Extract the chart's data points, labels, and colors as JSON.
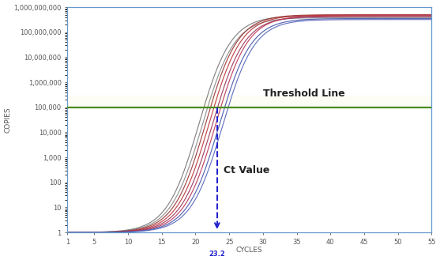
{
  "title": "",
  "xlabel": "CYCLES",
  "ylabel": "COPIES",
  "xlim": [
    1,
    55
  ],
  "ylim_log": [
    1,
    1000000000.0
  ],
  "xticks": [
    1,
    5,
    10,
    15,
    20,
    25,
    30,
    35,
    40,
    45,
    50,
    55
  ],
  "yticks": [
    1,
    10,
    100,
    1000,
    10000,
    100000,
    1000000,
    10000000,
    100000000,
    1000000000
  ],
  "ytick_labels": [
    "1",
    "10",
    "100",
    "1,000",
    "10,000",
    "100,000",
    "1,000,000",
    "10,000,000",
    "100,000,000",
    "1,000,000,000"
  ],
  "threshold_y": 100000,
  "threshold_color": "#4a8c1c",
  "threshold_label": "Threshold Line",
  "ct_value": 23.2,
  "ct_label": "Ct Value",
  "ct_arrow_color": "#2222cc",
  "background_color": "#ffffff",
  "plot_bg_color": "#ffffff",
  "axis_color": "#6699cc",
  "tick_color": "#555555",
  "font_size_axis_label": 6.5,
  "font_size_tick": 6,
  "font_size_annotation": 8,
  "curves": [
    {
      "color": "#777777",
      "midpoint": 20.5,
      "top": 450000000.0
    },
    {
      "color": "#888888",
      "midpoint": 21.0,
      "top": 380000000.0
    },
    {
      "color": "#993333",
      "midpoint": 21.5,
      "top": 500000000.0
    },
    {
      "color": "#bb3333",
      "midpoint": 22.0,
      "top": 480000000.0
    },
    {
      "color": "#993355",
      "midpoint": 22.5,
      "top": 420000000.0
    },
    {
      "color": "#bb3355",
      "midpoint": 23.0,
      "top": 450000000.0
    },
    {
      "color": "#4455aa",
      "midpoint": 23.5,
      "top": 350000000.0
    },
    {
      "color": "#5566bb",
      "midpoint": 24.0,
      "top": 320000000.0
    }
  ]
}
